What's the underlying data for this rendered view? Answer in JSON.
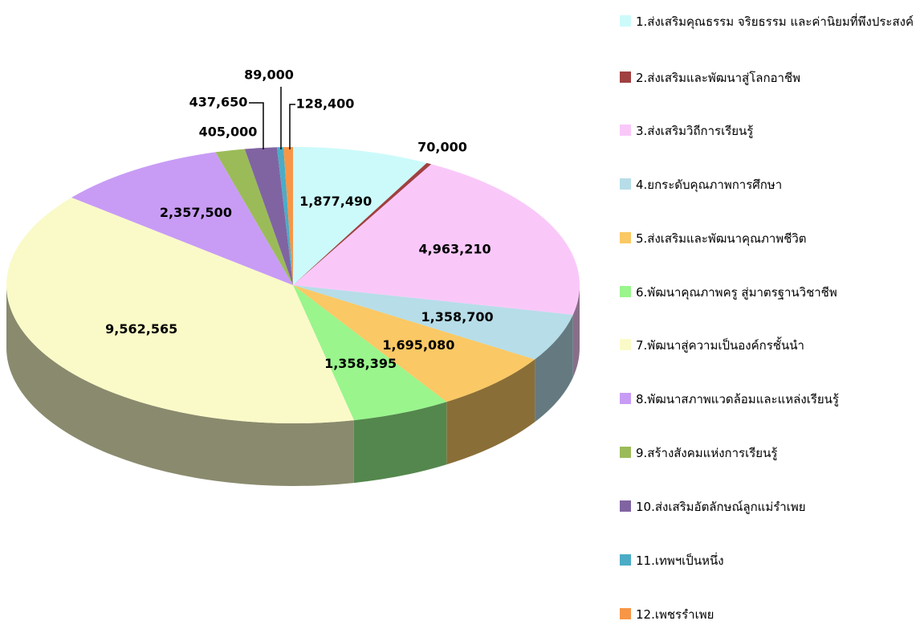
{
  "chart_data": {
    "type": "pie",
    "categories": [
      "1.ส่งเสริมคุณธรรม จริยธรรม และค่านิยมที่พึงประสงค์",
      "2.ส่งเสริมและพัฒนาสู่โลกอาชีพ",
      "3.ส่งเสริมวิถีการเรียนรู้",
      "4.ยกระดับคุณภาพการศึกษา",
      "5.ส่งเสริมและพัฒนาคุณภาพชีวิต",
      "6.พัฒนาคุณภาพครู สู่มาตรฐานวิชาชีพ",
      "7.พัฒนาสู่ความเป็นองค์กรชั้นนำ",
      "8.พัฒนาสภาพแวดล้อมและแหล่งเรียนรู้",
      "9.สร้างสังคมแห่งการเรียนรู้",
      "10.ส่งเสริมอัตลักษณ์ลูกแม่รำเพย",
      "11.เทพฯเป็นหนึ่ง",
      "12.เพชรรำเพย"
    ],
    "values": [
      1877490,
      70000,
      4963210,
      1358700,
      1695080,
      1358395,
      9562565,
      2357500,
      405000,
      437650,
      89000,
      128400
    ],
    "value_labels": [
      "1,877,490",
      "70,000",
      "4,963,210",
      "1,358,700",
      "1,695,080",
      "1,358,395",
      "9,562,565",
      "2,357,500",
      "405,000",
      "437,650",
      "89,000",
      "128,400"
    ],
    "colors": [
      "#ccfafa",
      "#a04040",
      "#f9c8f9",
      "#b6dde8",
      "#fac864",
      "#99f58c",
      "#fafac8",
      "#c89cf5",
      "#9bbb59",
      "#8064a2",
      "#4bacc6",
      "#f79646"
    ],
    "legend": "right"
  }
}
